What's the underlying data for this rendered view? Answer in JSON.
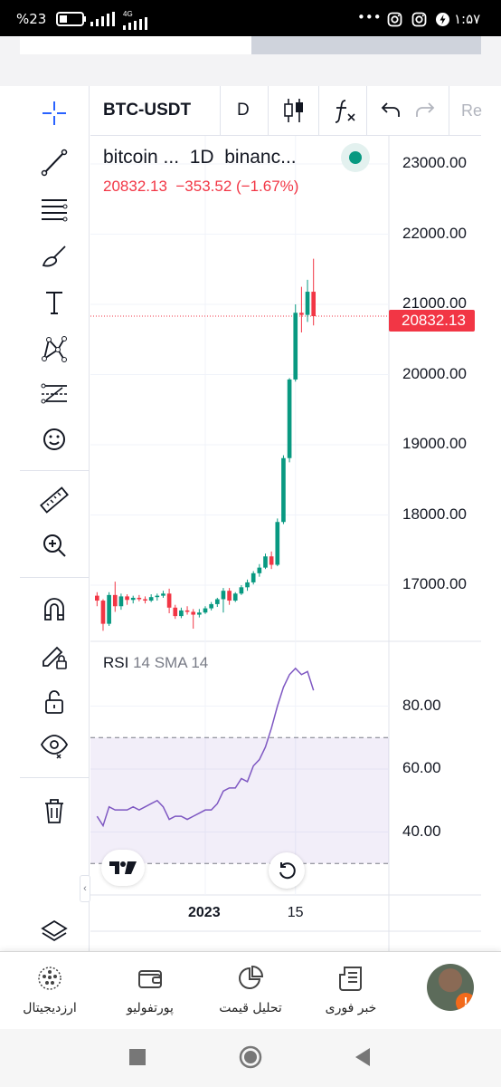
{
  "status_bar": {
    "battery": "%23",
    "network": "4G",
    "time": "۱:۵۷",
    "dots": "•••"
  },
  "chart_toolbar": {
    "symbol": "BTC-USDT",
    "interval": "D",
    "redo_truncated": "Re"
  },
  "legend": {
    "title": "bitcoin ...  1D  binanc...",
    "values": "20832.13  −353.52 (−1.67%)"
  },
  "price_scale": {
    "labels": [
      "23000.00",
      "22000.00",
      "21000.00",
      "20000.00",
      "19000.00",
      "18000.00",
      "17000.00"
    ],
    "last_price": "20832.13"
  },
  "rsi": {
    "name": "RSI",
    "params": "14 SMA 14",
    "scale_labels": [
      "80.00",
      "60.00",
      "40.00"
    ]
  },
  "time_scale": {
    "labels": [
      "2023",
      "15"
    ]
  },
  "colors": {
    "up": "#089981",
    "down": "#f23645",
    "rsi_line": "#7e57c2",
    "rsi_band": "#7e57c2"
  },
  "chart_data": {
    "type": "candlestick",
    "title": "bitcoin ... 1D binanc...",
    "ylim": [
      16200,
      23400
    ],
    "ohlc": [
      [
        16850,
        16900,
        16700,
        16780
      ],
      [
        16780,
        16800,
        16350,
        16450
      ],
      [
        16450,
        16900,
        16420,
        16860
      ],
      [
        16860,
        17050,
        16620,
        16700
      ],
      [
        16700,
        16880,
        16650,
        16840
      ],
      [
        16840,
        16870,
        16720,
        16790
      ],
      [
        16790,
        16850,
        16740,
        16820
      ],
      [
        16820,
        16860,
        16770,
        16800
      ],
      [
        16800,
        16840,
        16740,
        16780
      ],
      [
        16780,
        16870,
        16760,
        16830
      ],
      [
        16830,
        16880,
        16780,
        16850
      ],
      [
        16850,
        16920,
        16820,
        16880
      ],
      [
        16880,
        16950,
        16600,
        16680
      ],
      [
        16680,
        16720,
        16520,
        16560
      ],
      [
        16560,
        16680,
        16530,
        16640
      ],
      [
        16640,
        16700,
        16580,
        16620
      ],
      [
        16620,
        16660,
        16380,
        16580
      ],
      [
        16580,
        16660,
        16540,
        16610
      ],
      [
        16610,
        16700,
        16590,
        16670
      ],
      [
        16670,
        16760,
        16640,
        16730
      ],
      [
        16730,
        16820,
        16690,
        16800
      ],
      [
        16800,
        16960,
        16610,
        16920
      ],
      [
        16920,
        16960,
        16720,
        16780
      ],
      [
        16780,
        16900,
        16760,
        16880
      ],
      [
        16880,
        17000,
        16860,
        16970
      ],
      [
        16970,
        17080,
        16920,
        17040
      ],
      [
        17040,
        17200,
        17010,
        17170
      ],
      [
        17170,
        17300,
        17120,
        17250
      ],
      [
        17250,
        17450,
        17230,
        17410
      ],
      [
        17410,
        17480,
        17230,
        17290
      ],
      [
        17290,
        17950,
        17270,
        17900
      ],
      [
        17900,
        18850,
        17870,
        18810
      ],
      [
        18810,
        19950,
        18750,
        19930
      ],
      [
        19930,
        21000,
        19900,
        20880
      ],
      [
        20880,
        21250,
        20600,
        20850
      ],
      [
        20850,
        21350,
        20750,
        21180
      ],
      [
        21180,
        21650,
        20700,
        20832
      ]
    ],
    "rsi": [
      45,
      42,
      48,
      47,
      47,
      47,
      48,
      47,
      48,
      49,
      50,
      48,
      44,
      45,
      45,
      44,
      45,
      46,
      47,
      47,
      49,
      53,
      54,
      54,
      57,
      56,
      61,
      63,
      67,
      73,
      80,
      86,
      90,
      92,
      90,
      91,
      85
    ],
    "rsi_ylim": [
      20,
      100
    ],
    "rsi_band": [
      30,
      70
    ],
    "x_labels": [
      "2023",
      "15"
    ]
  },
  "bottom_nav": {
    "items": [
      {
        "label": "ارزدیجیتال",
        "icon": "crypto-coin-icon"
      },
      {
        "label": "پورتفولیو",
        "icon": "wallet-icon"
      },
      {
        "label": "تحلیل قیمت",
        "icon": "pie-chart-icon"
      },
      {
        "label": "خبر فوری",
        "icon": "news-icon"
      }
    ],
    "badge": "!"
  }
}
